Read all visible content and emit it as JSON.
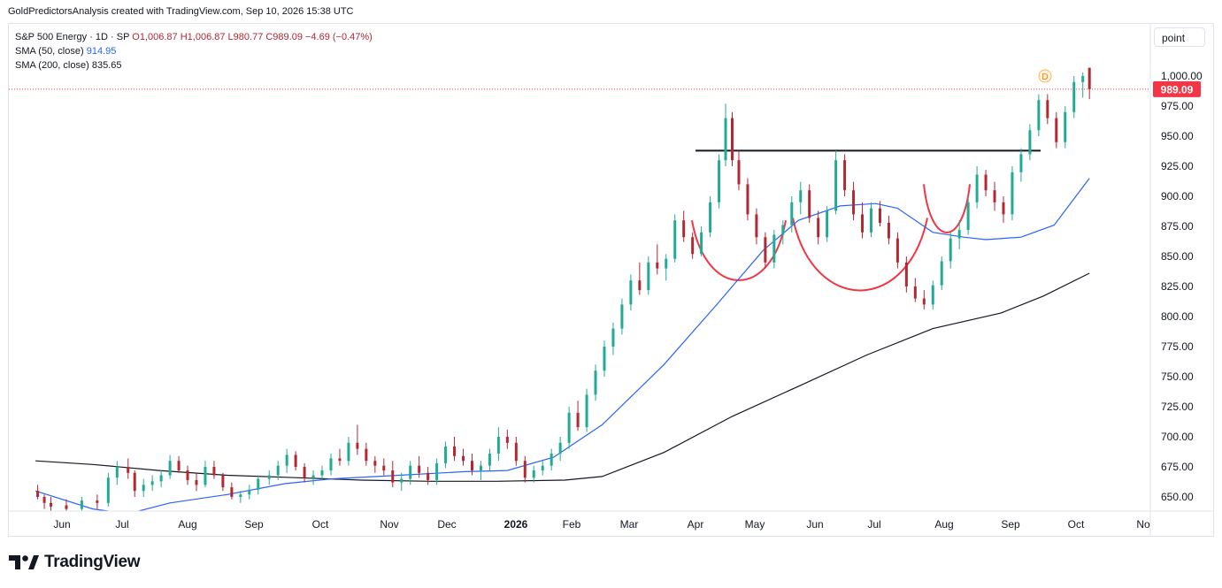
{
  "header": {
    "caption": "GoldPredictorsAnalysis created with TradingView.com, Sep 10, 2026 15:38 UTC"
  },
  "legend": {
    "symbol": "S&P 500 Energy",
    "interval": "· 1D · SP",
    "ohlc": "O1,006.87  H1,006.87  L980.77  C989.09  −4.69 (−0.47%)",
    "sma50_label": "SMA (50, close)",
    "sma50_value": "914.95",
    "sma200_label": "SMA (200, close)",
    "sma200_value": "835.65"
  },
  "scale_button": "point",
  "last_price_label": "989.09",
  "dividend_marker": "D",
  "branding": "TradingView",
  "colors": {
    "up": "#22ab94",
    "down": "#b22833",
    "sma50": "#2962ff",
    "sma200": "#131722",
    "pattern": "#f23645",
    "neckline": "#131722",
    "price_tag": "#f23645"
  },
  "chart_data": {
    "type": "candlestick",
    "title": "S&P 500 Energy · 1D · SP",
    "price_axis": {
      "ticks": [
        "650.00",
        "675.00",
        "700.00",
        "725.00",
        "750.00",
        "775.00",
        "800.00",
        "825.00",
        "850.00",
        "875.00",
        "900.00",
        "925.00",
        "950.00",
        "975.00",
        "1,000.00"
      ],
      "ylim": [
        635,
        1020
      ]
    },
    "time_axis": {
      "labels": [
        "Jun",
        "Jul",
        "Aug",
        "Sep",
        "Oct",
        "Nov",
        "Dec",
        "2026",
        "Feb",
        "Mar",
        "Apr",
        "May",
        "Jun",
        "Jul",
        "Aug",
        "Sep",
        "Oct",
        "No"
      ],
      "bold": [
        "2026"
      ]
    },
    "grid": false,
    "series": [
      {
        "name": "SMA (50, close)",
        "last": 914.95,
        "points": [
          [
            "2025-05-20",
            655
          ],
          [
            "2025-06-15",
            640
          ],
          [
            "2025-07-01",
            636
          ],
          [
            "2025-07-20",
            645
          ],
          [
            "2025-08-15",
            652
          ],
          [
            "2025-09-10",
            661
          ],
          [
            "2025-10-01",
            665
          ],
          [
            "2025-11-01",
            668
          ],
          [
            "2025-12-01",
            671
          ],
          [
            "2025-12-20",
            672
          ],
          [
            "2026-01-10",
            683
          ],
          [
            "2026-02-01",
            710
          ],
          [
            "2026-03-01",
            760
          ],
          [
            "2026-03-25",
            810
          ],
          [
            "2026-04-15",
            855
          ],
          [
            "2026-05-01",
            880
          ],
          [
            "2026-05-20",
            892
          ],
          [
            "2026-06-05",
            894
          ],
          [
            "2026-06-15",
            890
          ],
          [
            "2026-07-01",
            870
          ],
          [
            "2026-07-15",
            866
          ],
          [
            "2026-07-25",
            864
          ],
          [
            "2026-08-10",
            866
          ],
          [
            "2026-08-25",
            876
          ],
          [
            "2026-09-10",
            915
          ]
        ]
      },
      {
        "name": "SMA (200, close)",
        "last": 835.65,
        "points": [
          [
            "2025-05-20",
            680
          ],
          [
            "2025-06-15",
            677
          ],
          [
            "2025-07-15",
            672
          ],
          [
            "2025-08-15",
            668
          ],
          [
            "2025-09-15",
            666
          ],
          [
            "2025-10-15",
            664
          ],
          [
            "2025-11-15",
            663
          ],
          [
            "2025-12-15",
            663
          ],
          [
            "2026-01-15",
            664
          ],
          [
            "2026-02-01",
            667
          ],
          [
            "2026-03-01",
            687
          ],
          [
            "2026-04-01",
            717
          ],
          [
            "2026-05-01",
            742
          ],
          [
            "2026-06-01",
            768
          ],
          [
            "2026-07-01",
            790
          ],
          [
            "2026-08-01",
            803
          ],
          [
            "2026-08-20",
            817
          ],
          [
            "2026-09-10",
            836
          ]
        ]
      }
    ],
    "candles": [
      [
        "2025-05-21",
        655,
        660,
        648,
        650
      ],
      [
        "2025-05-24",
        650,
        652,
        640,
        645
      ],
      [
        "2025-05-27",
        645,
        650,
        638,
        642
      ],
      [
        "2025-06-03",
        643,
        648,
        635,
        640
      ],
      [
        "2025-06-10",
        640,
        650,
        636,
        647
      ],
      [
        "2025-06-17",
        647,
        652,
        640,
        645
      ],
      [
        "2025-06-22",
        645,
        670,
        642,
        666
      ],
      [
        "2025-06-26",
        666,
        680,
        660,
        675
      ],
      [
        "2025-07-01",
        675,
        682,
        665,
        670
      ],
      [
        "2025-07-04",
        670,
        672,
        650,
        655
      ],
      [
        "2025-07-08",
        655,
        665,
        650,
        660
      ],
      [
        "2025-07-12",
        660,
        668,
        655,
        663
      ],
      [
        "2025-07-16",
        663,
        672,
        658,
        668
      ],
      [
        "2025-07-20",
        668,
        685,
        665,
        680
      ],
      [
        "2025-07-24",
        680,
        684,
        670,
        672
      ],
      [
        "2025-07-28",
        672,
        676,
        660,
        664
      ],
      [
        "2025-08-01",
        664,
        670,
        655,
        660
      ],
      [
        "2025-08-05",
        660,
        680,
        658,
        675
      ],
      [
        "2025-08-09",
        675,
        680,
        665,
        668
      ],
      [
        "2025-08-13",
        668,
        670,
        655,
        658
      ],
      [
        "2025-08-17",
        658,
        662,
        648,
        650
      ],
      [
        "2025-08-21",
        650,
        655,
        645,
        652
      ],
      [
        "2025-08-25",
        652,
        660,
        648,
        656
      ],
      [
        "2025-08-29",
        656,
        668,
        652,
        665
      ],
      [
        "2025-09-03",
        665,
        672,
        660,
        668
      ],
      [
        "2025-09-07",
        668,
        680,
        664,
        676
      ],
      [
        "2025-09-11",
        676,
        690,
        670,
        685
      ],
      [
        "2025-09-15",
        685,
        688,
        672,
        675
      ],
      [
        "2025-09-19",
        675,
        678,
        662,
        666
      ],
      [
        "2025-09-23",
        666,
        672,
        660,
        668
      ],
      [
        "2025-09-27",
        668,
        676,
        664,
        672
      ],
      [
        "2025-10-01",
        672,
        686,
        668,
        682
      ],
      [
        "2025-10-05",
        682,
        690,
        676,
        680
      ],
      [
        "2025-10-09",
        680,
        700,
        676,
        695
      ],
      [
        "2025-10-13",
        695,
        710,
        685,
        690
      ],
      [
        "2025-10-17",
        690,
        695,
        676,
        680
      ],
      [
        "2025-10-21",
        680,
        684,
        670,
        676
      ],
      [
        "2025-10-25",
        676,
        682,
        668,
        672
      ],
      [
        "2025-10-29",
        672,
        680,
        658,
        662
      ],
      [
        "2025-11-02",
        662,
        670,
        655,
        665
      ],
      [
        "2025-11-06",
        665,
        680,
        660,
        676
      ],
      [
        "2025-11-10",
        676,
        684,
        666,
        670
      ],
      [
        "2025-11-14",
        670,
        675,
        660,
        664
      ],
      [
        "2025-11-18",
        664,
        682,
        660,
        678
      ],
      [
        "2025-11-22",
        678,
        696,
        674,
        692
      ],
      [
        "2025-11-26",
        692,
        700,
        680,
        684
      ],
      [
        "2025-11-30",
        684,
        690,
        676,
        680
      ],
      [
        "2025-12-04",
        680,
        686,
        668,
        672
      ],
      [
        "2025-12-08",
        672,
        680,
        664,
        676
      ],
      [
        "2025-12-12",
        676,
        690,
        672,
        686
      ],
      [
        "2025-12-16",
        686,
        708,
        680,
        700
      ],
      [
        "2025-12-20",
        700,
        706,
        690,
        695
      ],
      [
        "2025-12-24",
        695,
        700,
        676,
        680
      ],
      [
        "2025-12-28",
        680,
        684,
        662,
        666
      ],
      [
        "2026-01-01",
        666,
        676,
        662,
        672
      ],
      [
        "2026-01-05",
        672,
        680,
        668,
        676
      ],
      [
        "2026-01-09",
        676,
        690,
        672,
        686
      ],
      [
        "2026-01-13",
        686,
        700,
        680,
        695
      ],
      [
        "2026-01-17",
        695,
        725,
        690,
        720
      ],
      [
        "2026-01-21",
        720,
        730,
        705,
        708
      ],
      [
        "2026-01-25",
        708,
        740,
        704,
        735
      ],
      [
        "2026-01-29",
        735,
        760,
        730,
        755
      ],
      [
        "2026-02-02",
        755,
        780,
        750,
        775
      ],
      [
        "2026-02-06",
        775,
        795,
        768,
        790
      ],
      [
        "2026-02-10",
        790,
        815,
        785,
        810
      ],
      [
        "2026-02-14",
        810,
        835,
        805,
        830
      ],
      [
        "2026-02-18",
        830,
        845,
        818,
        822
      ],
      [
        "2026-02-22",
        822,
        850,
        818,
        845
      ],
      [
        "2026-02-26",
        845,
        860,
        835,
        840
      ],
      [
        "2026-03-02",
        840,
        852,
        830,
        848
      ],
      [
        "2026-03-06",
        848,
        885,
        845,
        880
      ],
      [
        "2026-03-10",
        880,
        888,
        862,
        866
      ],
      [
        "2026-03-14",
        866,
        870,
        848,
        852
      ],
      [
        "2026-03-18",
        852,
        875,
        850,
        870
      ],
      [
        "2026-03-22",
        870,
        900,
        866,
        895
      ],
      [
        "2026-03-26",
        895,
        935,
        890,
        930
      ],
      [
        "2026-03-29",
        930,
        977,
        925,
        965
      ],
      [
        "2026-04-01",
        965,
        970,
        925,
        930
      ],
      [
        "2026-04-04",
        930,
        938,
        905,
        910
      ],
      [
        "2026-04-08",
        910,
        915,
        880,
        885
      ],
      [
        "2026-04-12",
        885,
        890,
        860,
        866
      ],
      [
        "2026-04-16",
        866,
        870,
        840,
        845
      ],
      [
        "2026-04-20",
        845,
        872,
        840,
        868
      ],
      [
        "2026-04-24",
        868,
        880,
        860,
        876
      ],
      [
        "2026-04-28",
        876,
        900,
        870,
        895
      ],
      [
        "2026-05-02",
        895,
        912,
        885,
        905
      ],
      [
        "2026-05-06",
        905,
        910,
        878,
        882
      ],
      [
        "2026-05-10",
        882,
        888,
        860,
        866
      ],
      [
        "2026-05-14",
        866,
        892,
        862,
        888
      ],
      [
        "2026-05-18",
        888,
        938,
        885,
        930
      ],
      [
        "2026-05-22",
        930,
        935,
        900,
        905
      ],
      [
        "2026-05-26",
        905,
        912,
        880,
        885
      ],
      [
        "2026-05-30",
        885,
        895,
        865,
        870
      ],
      [
        "2026-06-03",
        870,
        895,
        866,
        890
      ],
      [
        "2026-06-07",
        890,
        896,
        875,
        878
      ],
      [
        "2026-06-11",
        878,
        884,
        860,
        865
      ],
      [
        "2026-06-15",
        865,
        870,
        840,
        845
      ],
      [
        "2026-06-19",
        845,
        850,
        820,
        825
      ],
      [
        "2026-06-23",
        825,
        832,
        812,
        815
      ],
      [
        "2026-06-27",
        815,
        822,
        806,
        810
      ],
      [
        "2026-07-01",
        810,
        830,
        806,
        826
      ],
      [
        "2026-07-05",
        826,
        850,
        822,
        846
      ],
      [
        "2026-07-09",
        846,
        870,
        840,
        865
      ],
      [
        "2026-07-13",
        865,
        880,
        856,
        872
      ],
      [
        "2026-07-17",
        872,
        900,
        868,
        895
      ],
      [
        "2026-07-21",
        895,
        925,
        890,
        918
      ],
      [
        "2026-07-25",
        918,
        922,
        900,
        905
      ],
      [
        "2026-07-29",
        905,
        912,
        888,
        895
      ],
      [
        "2026-08-02",
        895,
        900,
        878,
        885
      ],
      [
        "2026-08-06",
        885,
        925,
        880,
        920
      ],
      [
        "2026-08-10",
        920,
        940,
        912,
        935
      ],
      [
        "2026-08-14",
        935,
        960,
        930,
        955
      ],
      [
        "2026-08-18",
        955,
        985,
        950,
        980
      ],
      [
        "2026-08-22",
        980,
        985,
        960,
        965
      ],
      [
        "2026-08-26",
        965,
        970,
        940,
        945
      ],
      [
        "2026-08-30",
        945,
        975,
        940,
        970
      ],
      [
        "2026-09-03",
        970,
        1000,
        965,
        995
      ],
      [
        "2026-09-07",
        995,
        1003,
        982,
        1000
      ],
      [
        "2026-09-10",
        1006.87,
        1006.87,
        980.77,
        989.09
      ]
    ]
  }
}
